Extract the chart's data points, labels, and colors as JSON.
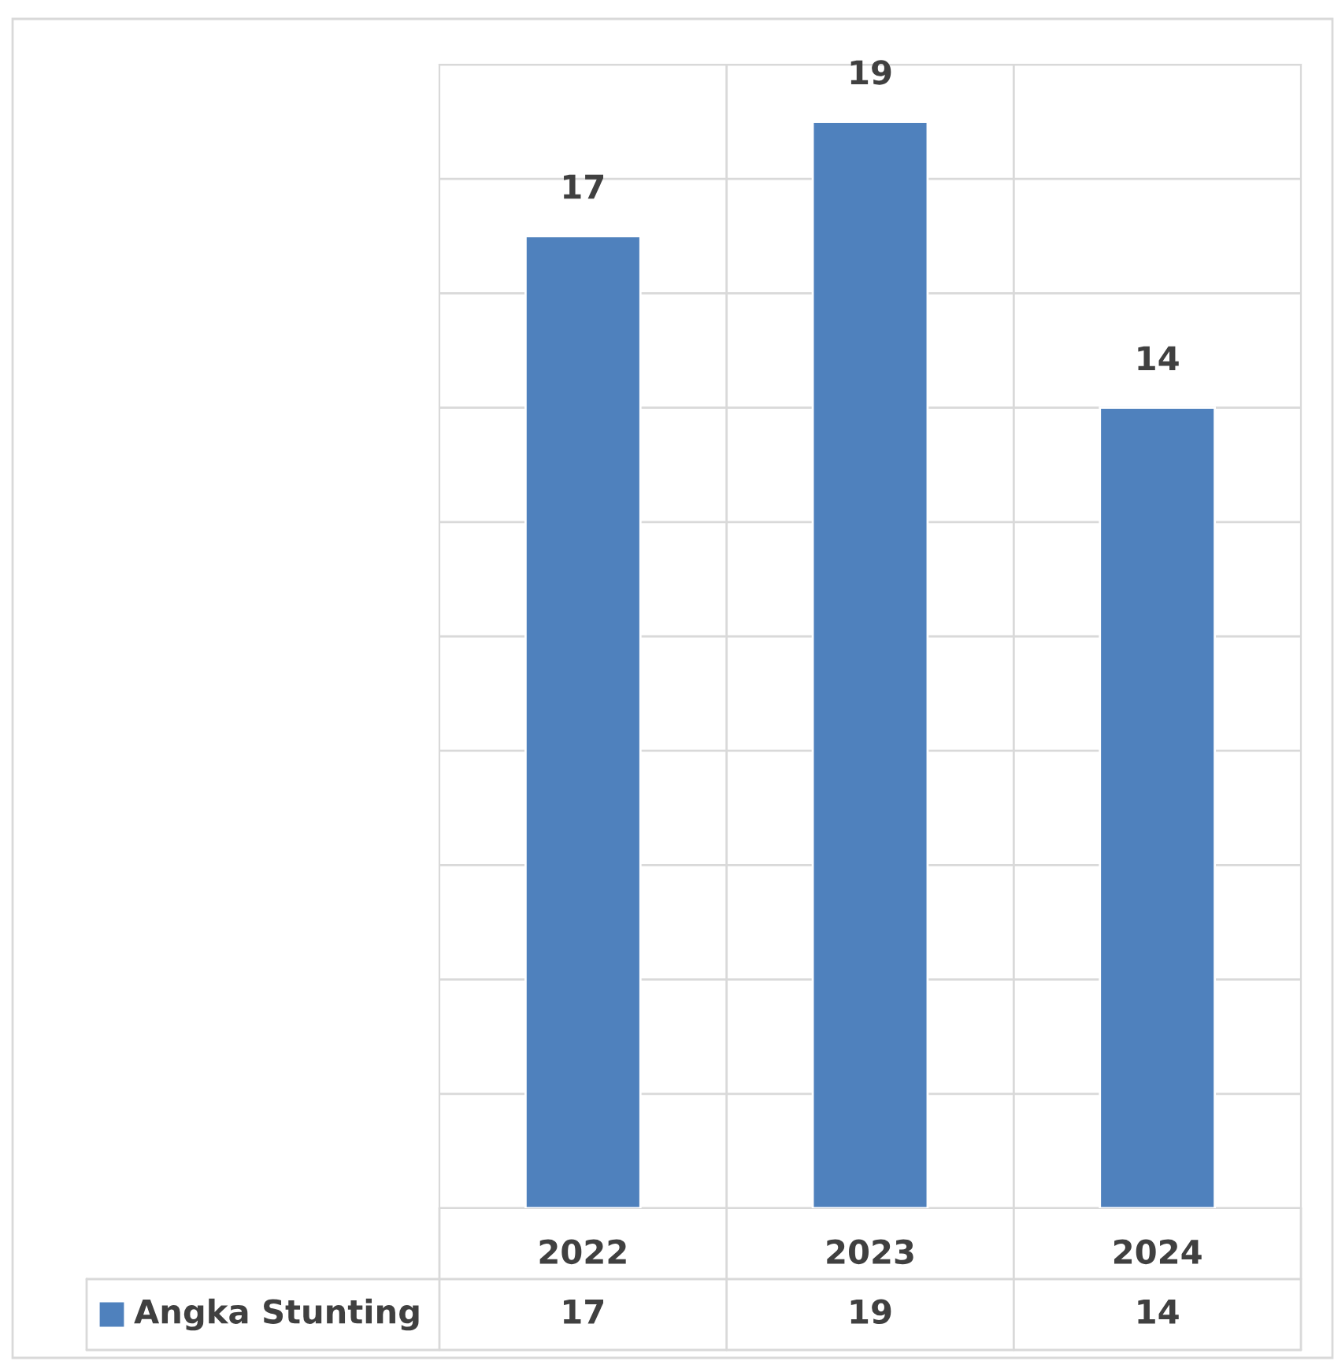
{
  "chart_data": {
    "type": "bar",
    "categories": [
      "2022",
      "2023",
      "2024"
    ],
    "series": [
      {
        "name": "Angka Stunting",
        "color": "#4f81bd",
        "values": [
          17,
          19,
          14
        ],
        "value_labels": [
          "17",
          "19",
          "14"
        ]
      }
    ],
    "ylim": [
      0,
      20
    ],
    "yticks": [
      {
        "value": 0,
        "label": null
      },
      {
        "value": 2,
        "label": null
      },
      {
        "value": 4,
        "label": null
      },
      {
        "value": 6,
        "label": null
      },
      {
        "value": 8,
        "label": null
      },
      {
        "value": 10,
        "label": null
      },
      {
        "value": 12,
        "label": null
      },
      {
        "value": 14,
        "label": null
      },
      {
        "value": 16,
        "label": null
      },
      {
        "value": 18,
        "label": null
      },
      {
        "value": 20,
        "label": null
      }
    ],
    "annotations": [
      "17",
      "19",
      "14"
    ],
    "grid": true,
    "legend": "bottom",
    "tick_labels": "x"
  }
}
